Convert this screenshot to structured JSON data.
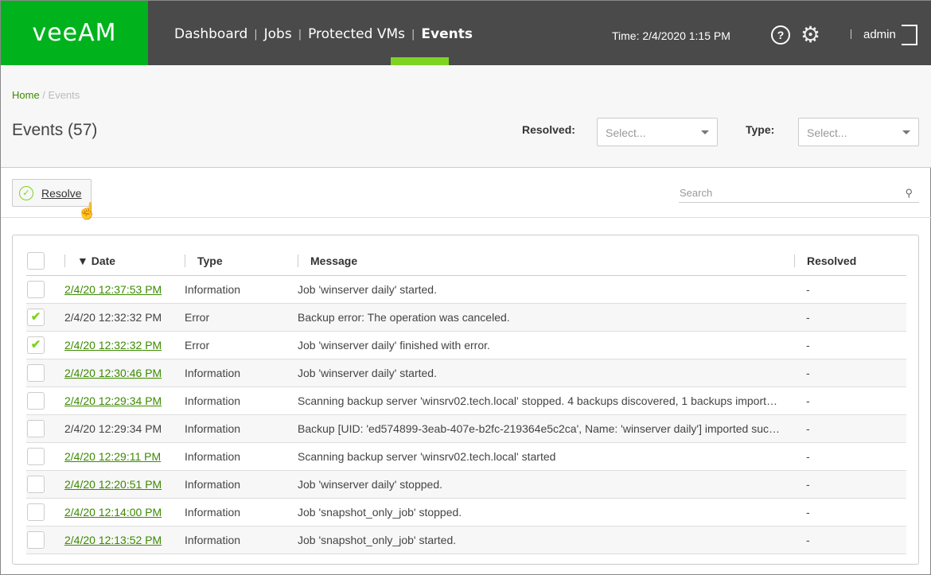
{
  "header": {
    "logo": "veeAM",
    "nav": [
      "Dashboard",
      "Jobs",
      "Protected VMs",
      "Events"
    ],
    "active": "Events",
    "time": "Time: 2/4/2020 1:15 PM",
    "help": "?",
    "user": "admin"
  },
  "breadcrumb": {
    "home": "Home",
    "current": "Events"
  },
  "page": {
    "title": "Events (57)"
  },
  "filters": {
    "resolved_label": "Resolved:",
    "resolved_placeholder": "Select...",
    "type_label": "Type:",
    "type_placeholder": "Select..."
  },
  "toolbar": {
    "resolve_label": "Resolve",
    "search_placeholder": "Search"
  },
  "table": {
    "headers": [
      "Date",
      "Type",
      "Message",
      "Resolved"
    ],
    "sort": "Date descending",
    "rows": [
      {
        "date": "2/4/20 12:37:53 PM",
        "link": true,
        "checked": false,
        "type": "Information",
        "message": "Job 'winserver daily' started.",
        "resolved": "-"
      },
      {
        "date": "2/4/20 12:32:32 PM",
        "link": false,
        "checked": true,
        "type": "Error",
        "message": "Backup error: The operation was canceled.",
        "resolved": "-"
      },
      {
        "date": "2/4/20 12:32:32 PM",
        "link": true,
        "checked": true,
        "type": "Error",
        "message": "Job 'winserver daily' finished with error.",
        "resolved": "-"
      },
      {
        "date": "2/4/20 12:30:46 PM",
        "link": true,
        "checked": false,
        "type": "Information",
        "message": "Job 'winserver daily' started.",
        "resolved": "-"
      },
      {
        "date": "2/4/20 12:29:34 PM",
        "link": true,
        "checked": false,
        "type": "Information",
        "message": "Scanning backup server 'winsrv02.tech.local' stopped. 4 backups discovered, 1 backups import…",
        "resolved": "-"
      },
      {
        "date": "2/4/20 12:29:34 PM",
        "link": false,
        "checked": false,
        "type": "Information",
        "message": "Backup [UID: 'ed574899-3eab-407e-b2fc-219364e5c2ca', Name: 'winserver daily'] imported suc…",
        "resolved": "-"
      },
      {
        "date": "2/4/20 12:29:11 PM",
        "link": true,
        "checked": false,
        "type": "Information",
        "message": "Scanning backup server 'winsrv02.tech.local' started",
        "resolved": "-"
      },
      {
        "date": "2/4/20 12:20:51 PM",
        "link": true,
        "checked": false,
        "type": "Information",
        "message": "Job 'winserver daily' stopped.",
        "resolved": "-"
      },
      {
        "date": "2/4/20 12:14:00 PM",
        "link": true,
        "checked": false,
        "type": "Information",
        "message": "Job 'snapshot_only_job' stopped.",
        "resolved": "-"
      },
      {
        "date": "2/4/20 12:13:52 PM",
        "link": true,
        "checked": false,
        "type": "Information",
        "message": "Job 'snapshot_only_job' started.",
        "resolved": "-"
      }
    ]
  },
  "colors": {
    "brand": "#00b31d",
    "accent": "#7ed321",
    "link": "#3c8a00",
    "header": "#4a4a4a"
  }
}
